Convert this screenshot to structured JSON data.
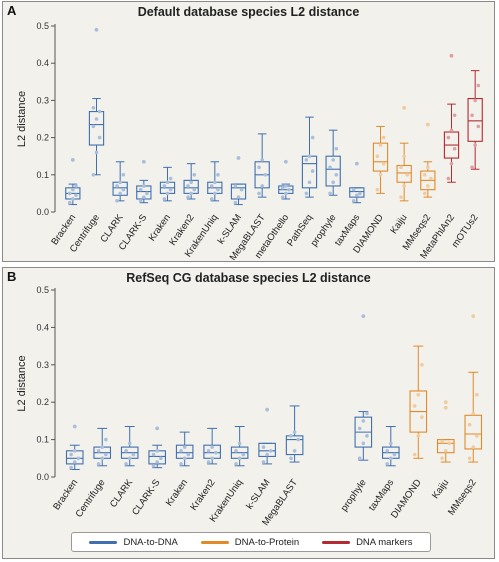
{
  "colors": {
    "dna_to_dna": "#3f6fae",
    "dna_to_protein": "#e08a2a",
    "dna_markers": "#b32a30"
  },
  "legend": [
    {
      "label": "DNA-to-DNA",
      "group": "dna_to_dna"
    },
    {
      "label": "DNA-to-Protein",
      "group": "dna_to_protein"
    },
    {
      "label": "DNA markers",
      "group": "dna_markers"
    }
  ],
  "chart_data": [
    {
      "panel": "A",
      "type": "box",
      "title": "Default database species L2 distance",
      "ylabel": "L2 distance",
      "ylim": [
        0,
        0.5
      ],
      "yticks": [
        "0.0",
        "0.1",
        "0.2",
        "0.3",
        "0.4",
        "0.5"
      ],
      "categories": [
        {
          "name": "Bracken",
          "group": "dna_to_dna",
          "whisker_low": 0.02,
          "q1": 0.035,
          "median": 0.05,
          "q3": 0.065,
          "whisker_high": 0.075,
          "outliers": [
            0.14
          ],
          "points": [
            0.025,
            0.035,
            0.045,
            0.05,
            0.06,
            0.07
          ]
        },
        {
          "name": "Centrifuge",
          "group": "dna_to_dna",
          "whisker_low": 0.1,
          "q1": 0.18,
          "median": 0.235,
          "q3": 0.27,
          "whisker_high": 0.305,
          "outliers": [
            0.49
          ],
          "points": [
            0.1,
            0.16,
            0.2,
            0.23,
            0.25,
            0.27,
            0.28
          ]
        },
        {
          "name": "CLARK",
          "group": "dna_to_dna",
          "whisker_low": 0.03,
          "q1": 0.045,
          "median": 0.065,
          "q3": 0.08,
          "whisker_high": 0.135,
          "outliers": [],
          "points": [
            0.03,
            0.05,
            0.06,
            0.07,
            0.08,
            0.1
          ]
        },
        {
          "name": "CLARK-S",
          "group": "dna_to_dna",
          "whisker_low": 0.025,
          "q1": 0.035,
          "median": 0.055,
          "q3": 0.07,
          "whisker_high": 0.085,
          "outliers": [
            0.135
          ],
          "points": [
            0.03,
            0.04,
            0.05,
            0.06,
            0.07
          ]
        },
        {
          "name": "Kraken",
          "group": "dna_to_dna",
          "whisker_low": 0.03,
          "q1": 0.05,
          "median": 0.065,
          "q3": 0.08,
          "whisker_high": 0.12,
          "outliers": [],
          "points": [
            0.035,
            0.05,
            0.06,
            0.07,
            0.08,
            0.09
          ]
        },
        {
          "name": "Kraken2",
          "group": "dna_to_dna",
          "whisker_low": 0.035,
          "q1": 0.05,
          "median": 0.065,
          "q3": 0.085,
          "whisker_high": 0.13,
          "outliers": [],
          "points": [
            0.04,
            0.05,
            0.06,
            0.07,
            0.08,
            0.1
          ]
        },
        {
          "name": "KrakenUniq",
          "group": "dna_to_dna",
          "whisker_low": 0.03,
          "q1": 0.05,
          "median": 0.065,
          "q3": 0.08,
          "whisker_high": 0.135,
          "outliers": [],
          "points": [
            0.035,
            0.05,
            0.06,
            0.07,
            0.08,
            0.1
          ]
        },
        {
          "name": "k-SLAM",
          "group": "dna_to_dna",
          "whisker_low": 0.02,
          "q1": 0.035,
          "median": 0.065,
          "q3": 0.075,
          "whisker_high": 0.075,
          "outliers": [
            0.145
          ],
          "points": [
            0.025,
            0.04,
            0.06,
            0.07
          ]
        },
        {
          "name": "MegaBLAST",
          "group": "dna_to_dna",
          "whisker_low": 0.04,
          "q1": 0.065,
          "median": 0.1,
          "q3": 0.135,
          "whisker_high": 0.21,
          "outliers": [],
          "points": [
            0.05,
            0.07,
            0.1,
            0.12,
            0.14
          ]
        },
        {
          "name": "metaOthello",
          "group": "dna_to_dna",
          "whisker_low": 0.035,
          "q1": 0.05,
          "median": 0.06,
          "q3": 0.07,
          "whisker_high": 0.075,
          "outliers": [
            0.135
          ],
          "points": [
            0.04,
            0.05,
            0.06,
            0.065,
            0.07
          ]
        },
        {
          "name": "PathSeq",
          "group": "dna_to_dna",
          "whisker_low": 0.04,
          "q1": 0.065,
          "median": 0.13,
          "q3": 0.15,
          "whisker_high": 0.255,
          "outliers": [],
          "points": [
            0.05,
            0.08,
            0.11,
            0.14,
            0.15,
            0.2
          ]
        },
        {
          "name": "prophyle",
          "group": "dna_to_dna",
          "whisker_low": 0.045,
          "q1": 0.07,
          "median": 0.115,
          "q3": 0.15,
          "whisker_high": 0.22,
          "outliers": [],
          "points": [
            0.05,
            0.08,
            0.1,
            0.12,
            0.14,
            0.17
          ]
        },
        {
          "name": "taxMaps",
          "group": "dna_to_dna",
          "whisker_low": 0.025,
          "q1": 0.04,
          "median": 0.055,
          "q3": 0.065,
          "whisker_high": 0.065,
          "outliers": [
            0.13
          ],
          "points": [
            0.03,
            0.045,
            0.05,
            0.06
          ]
        },
        {
          "name": "DIAMOND",
          "group": "dna_to_protein",
          "whisker_low": 0.05,
          "q1": 0.11,
          "median": 0.135,
          "q3": 0.185,
          "whisker_high": 0.23,
          "outliers": [],
          "points": [
            0.06,
            0.1,
            0.13,
            0.15,
            0.18,
            0.2
          ]
        },
        {
          "name": "Kaiju",
          "group": "dna_to_protein",
          "whisker_low": 0.03,
          "q1": 0.08,
          "median": 0.105,
          "q3": 0.125,
          "whisker_high": 0.185,
          "outliers": [
            0.28
          ],
          "points": [
            0.04,
            0.07,
            0.1,
            0.12,
            0.15
          ]
        },
        {
          "name": "MMseqs2",
          "group": "dna_to_protein",
          "whisker_low": 0.04,
          "q1": 0.06,
          "median": 0.085,
          "q3": 0.11,
          "whisker_high": 0.135,
          "outliers": [
            0.235
          ],
          "points": [
            0.05,
            0.07,
            0.09,
            0.1,
            0.12
          ]
        },
        {
          "name": "MetaPhlAn2",
          "group": "dna_markers",
          "whisker_low": 0.08,
          "q1": 0.145,
          "median": 0.18,
          "q3": 0.215,
          "whisker_high": 0.29,
          "outliers": [
            0.42
          ],
          "points": [
            0.09,
            0.13,
            0.17,
            0.2,
            0.22,
            0.26
          ]
        },
        {
          "name": "mOTUs2",
          "group": "dna_markers",
          "whisker_low": 0.115,
          "q1": 0.19,
          "median": 0.245,
          "q3": 0.305,
          "whisker_high": 0.38,
          "outliers": [],
          "points": [
            0.12,
            0.18,
            0.23,
            0.26,
            0.3,
            0.34
          ]
        }
      ]
    },
    {
      "panel": "B",
      "type": "box",
      "title": "RefSeq CG database species L2 distance",
      "ylabel": "L2 distance",
      "ylim": [
        0,
        0.5
      ],
      "yticks": [
        "0.0",
        "0.1",
        "0.2",
        "0.3",
        "0.4",
        "0.5"
      ],
      "categories": [
        {
          "name": "Bracken",
          "group": "dna_to_dna",
          "whisker_low": 0.02,
          "q1": 0.035,
          "median": 0.05,
          "q3": 0.07,
          "whisker_high": 0.085,
          "outliers": [
            0.135
          ],
          "points": [
            0.025,
            0.04,
            0.05,
            0.06,
            0.07
          ]
        },
        {
          "name": "Centrifuge",
          "group": "dna_to_dna",
          "whisker_low": 0.03,
          "q1": 0.05,
          "median": 0.065,
          "q3": 0.08,
          "whisker_high": 0.13,
          "outliers": [],
          "points": [
            0.035,
            0.05,
            0.06,
            0.07,
            0.08,
            0.1
          ]
        },
        {
          "name": "CLARK",
          "group": "dna_to_dna",
          "whisker_low": 0.03,
          "q1": 0.05,
          "median": 0.065,
          "q3": 0.08,
          "whisker_high": 0.135,
          "outliers": [],
          "points": [
            0.035,
            0.05,
            0.06,
            0.07,
            0.09
          ]
        },
        {
          "name": "CLARK-S",
          "group": "dna_to_dna",
          "whisker_low": 0.025,
          "q1": 0.035,
          "median": 0.055,
          "q3": 0.07,
          "whisker_high": 0.085,
          "outliers": [
            0.13
          ],
          "points": [
            0.03,
            0.04,
            0.05,
            0.06,
            0.07
          ]
        },
        {
          "name": "Kraken",
          "group": "dna_to_dna",
          "whisker_low": 0.03,
          "q1": 0.05,
          "median": 0.065,
          "q3": 0.085,
          "whisker_high": 0.12,
          "outliers": [],
          "points": [
            0.035,
            0.05,
            0.06,
            0.07,
            0.08
          ]
        },
        {
          "name": "Kraken2",
          "group": "dna_to_dna",
          "whisker_low": 0.035,
          "q1": 0.05,
          "median": 0.065,
          "q3": 0.085,
          "whisker_high": 0.13,
          "outliers": [],
          "points": [
            0.04,
            0.05,
            0.065,
            0.07,
            0.08
          ]
        },
        {
          "name": "KrakenUniq",
          "group": "dna_to_dna",
          "whisker_low": 0.03,
          "q1": 0.05,
          "median": 0.065,
          "q3": 0.08,
          "whisker_high": 0.135,
          "outliers": [],
          "points": [
            0.035,
            0.05,
            0.06,
            0.07,
            0.09
          ]
        },
        {
          "name": "k-SLAM",
          "group": "dna_to_dna",
          "whisker_low": 0.035,
          "q1": 0.055,
          "median": 0.07,
          "q3": 0.09,
          "whisker_high": 0.09,
          "outliers": [
            0.18
          ],
          "points": [
            0.04,
            0.06,
            0.07,
            0.08
          ]
        },
        {
          "name": "MegaBLAST",
          "group": "dna_to_dna",
          "whisker_low": 0.04,
          "q1": 0.06,
          "median": 0.1,
          "q3": 0.11,
          "whisker_high": 0.19,
          "outliers": [],
          "points": [
            0.05,
            0.07,
            0.1,
            0.11,
            0.12
          ]
        },
        {
          "name": "prophyle",
          "group": "dna_to_dna",
          "whisker_low": 0.045,
          "q1": 0.08,
          "median": 0.12,
          "q3": 0.16,
          "whisker_high": 0.175,
          "outliers": [
            0.43
          ],
          "points": [
            0.05,
            0.09,
            0.11,
            0.13,
            0.15,
            0.17
          ]
        },
        {
          "name": "taxMaps",
          "group": "dna_to_dna",
          "whisker_low": 0.03,
          "q1": 0.05,
          "median": 0.065,
          "q3": 0.08,
          "whisker_high": 0.135,
          "outliers": [],
          "points": [
            0.035,
            0.05,
            0.06,
            0.07,
            0.09
          ]
        },
        {
          "name": "DIAMOND",
          "group": "dna_to_protein",
          "whisker_low": 0.05,
          "q1": 0.12,
          "median": 0.175,
          "q3": 0.23,
          "whisker_high": 0.35,
          "outliers": [],
          "points": [
            0.06,
            0.11,
            0.16,
            0.19,
            0.22,
            0.3
          ]
        },
        {
          "name": "Kaiju",
          "group": "dna_to_protein",
          "whisker_low": 0.04,
          "q1": 0.065,
          "median": 0.09,
          "q3": 0.1,
          "whisker_high": 0.1,
          "outliers": [
            0.185,
            0.2
          ],
          "points": [
            0.05,
            0.07,
            0.09,
            0.095
          ]
        },
        {
          "name": "MMseqs2",
          "group": "dna_to_protein",
          "whisker_low": 0.04,
          "q1": 0.075,
          "median": 0.115,
          "q3": 0.165,
          "whisker_high": 0.28,
          "outliers": [
            0.43
          ],
          "points": [
            0.05,
            0.08,
            0.11,
            0.14,
            0.17,
            0.22
          ]
        }
      ]
    }
  ]
}
